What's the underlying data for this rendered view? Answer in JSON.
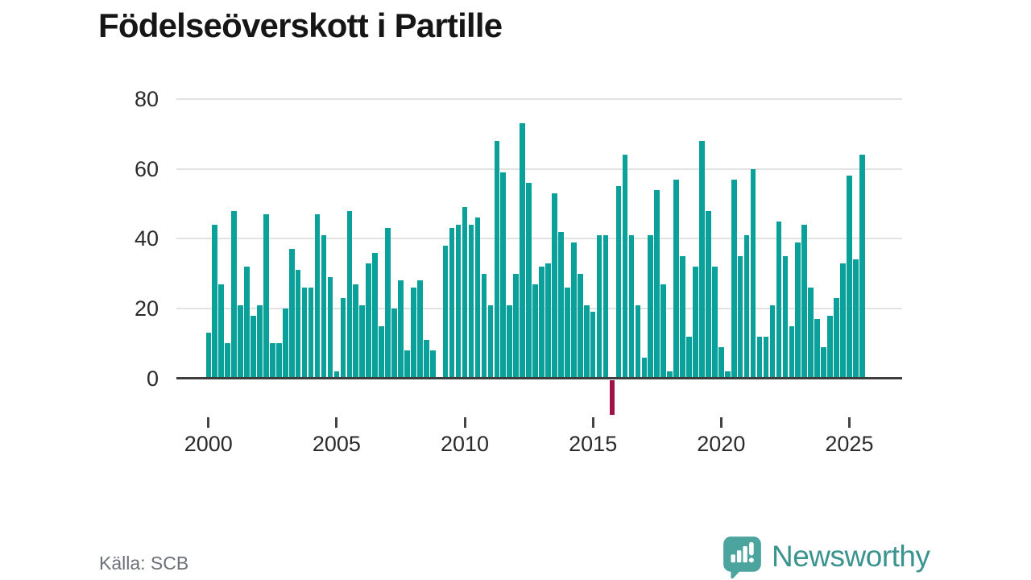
{
  "title": "Födelseöverskott i Partille",
  "source": "Källa: SCB",
  "logo": {
    "text": "Newsworthy",
    "icon": "newsworthy-speech-bubble-chart-icon"
  },
  "colors": {
    "background": "#ffffff",
    "title": "#161616",
    "bar": "#0aa19a",
    "negative_bar": "#9f1147",
    "gridline": "#e2e2e2",
    "axis_line": "#3d3d3d",
    "tick_label": "#2b2b2b",
    "source_text": "#6d7077",
    "logo_teal": "#3a938e",
    "logo_icon_teal": "#4ca49f"
  },
  "chart_data": {
    "type": "bar",
    "title": "Födelseöverskott i Partille",
    "frequency": "quarterly",
    "start_period": "2000 Q1",
    "end_period": "2025 Q3",
    "xlabel": "",
    "ylabel": "",
    "y_ticks": [
      0,
      20,
      40,
      60,
      80
    ],
    "ylim": [
      -12,
      84
    ],
    "grid": "horizontal",
    "x_tick_labels": [
      "2000",
      "2005",
      "2010",
      "2015",
      "2020",
      "2025"
    ],
    "x_tick_indices": [
      0,
      20,
      40,
      60,
      80,
      100
    ],
    "bar_color": "#0aa19a",
    "negative_bar_color": "#9f1147",
    "values": [
      13,
      44,
      27,
      10,
      48,
      21,
      32,
      18,
      21,
      47,
      10,
      10,
      20,
      37,
      31,
      26,
      26,
      47,
      41,
      29,
      2,
      23,
      48,
      27,
      21,
      33,
      36,
      15,
      43,
      20,
      28,
      8,
      26,
      28,
      11,
      8,
      0,
      38,
      43,
      44,
      49,
      44,
      46,
      30,
      21,
      68,
      59,
      21,
      30,
      73,
      56,
      27,
      32,
      33,
      53,
      42,
      26,
      39,
      30,
      21,
      19,
      41,
      41,
      -10,
      55,
      64,
      41,
      21,
      6,
      41,
      54,
      27,
      2,
      57,
      35,
      12,
      32,
      68,
      48,
      32,
      9,
      2,
      57,
      35,
      41,
      60,
      12,
      12,
      21,
      45,
      35,
      15,
      39,
      44,
      26,
      17,
      9,
      18,
      23,
      33,
      58,
      34,
      64
    ]
  }
}
